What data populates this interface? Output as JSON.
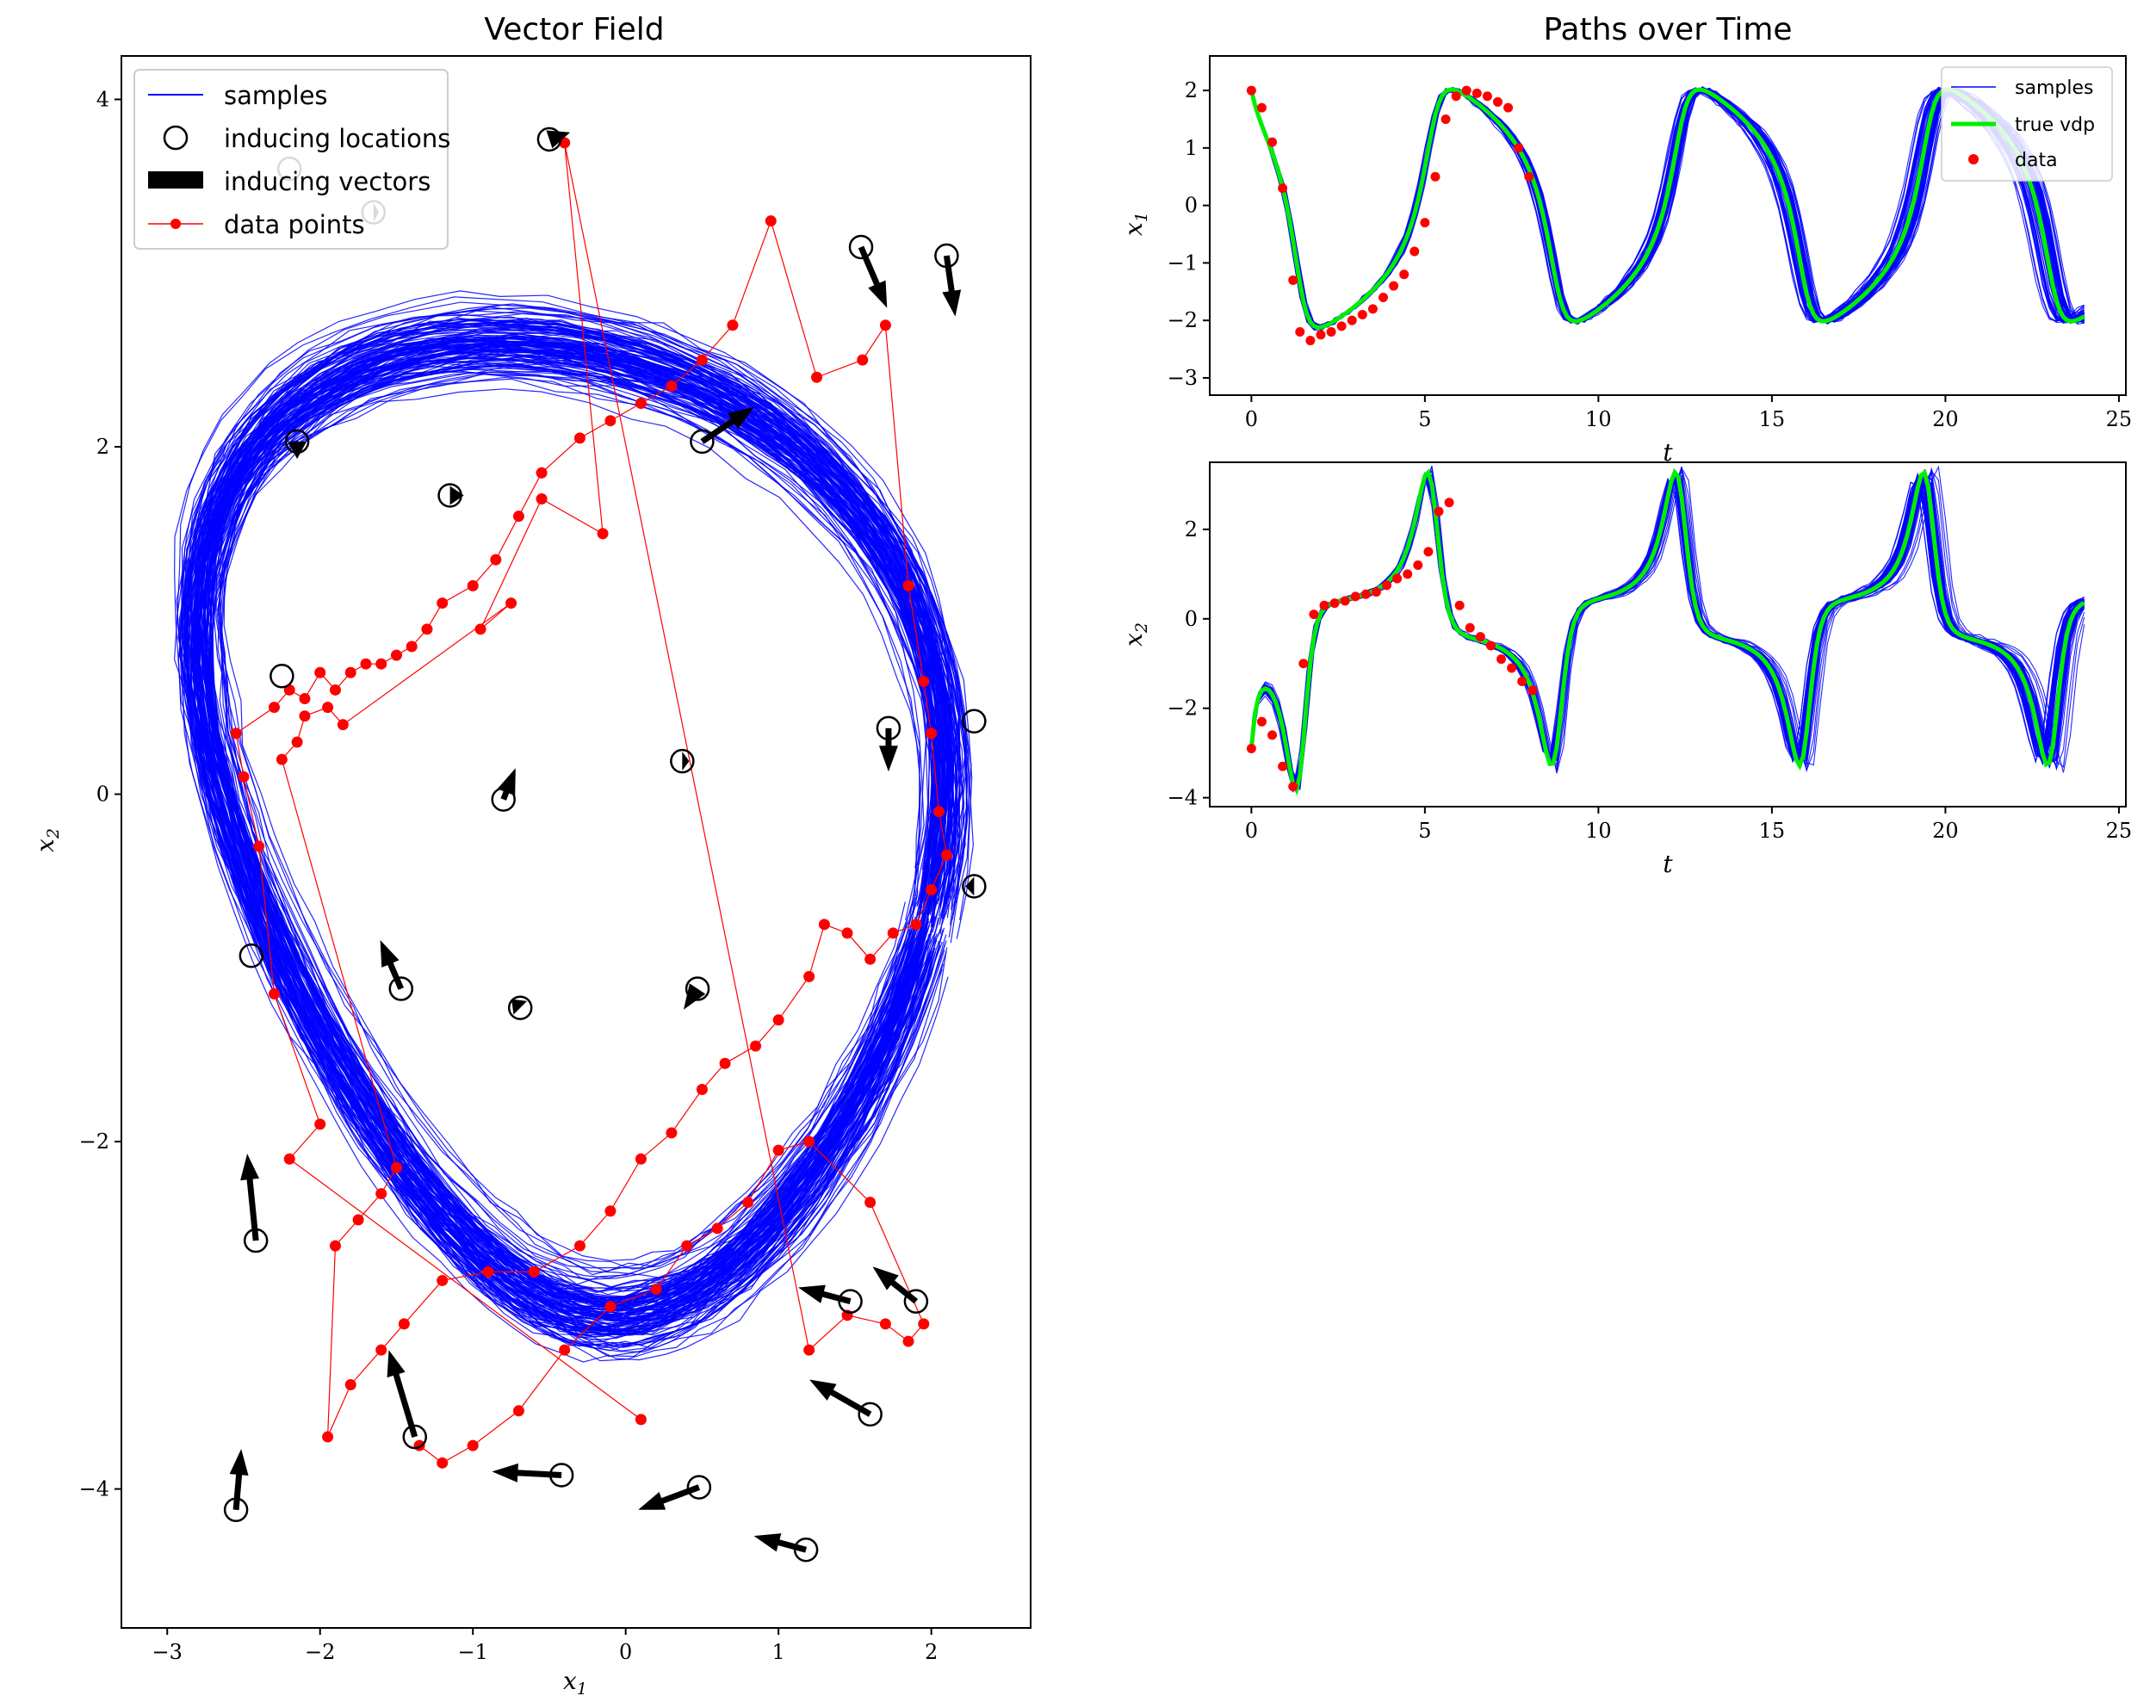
{
  "chart_data": [
    {
      "type": "line",
      "title": "Vector Field",
      "xlabel": "x",
      "xlabel_sub": "1",
      "ylabel": "x",
      "ylabel_sub": "2",
      "xlim": [
        -3.3,
        2.65
      ],
      "ylim": [
        -4.8,
        4.25
      ],
      "xticks": [
        -3,
        -2,
        -1,
        0,
        1,
        2
      ],
      "yticks": [
        -4,
        -2,
        0,
        2,
        4
      ],
      "legend": {
        "placement": "top-left",
        "entries": [
          "samples",
          "inducing locations",
          "inducing vectors",
          "data points"
        ]
      },
      "colors": {
        "samples": "#0000ff",
        "data": "#ff0000",
        "vectors": "#000000"
      },
      "data_points": [
        [
          0.1,
          -3.6
        ],
        [
          -2.2,
          -2.1
        ],
        [
          -2.0,
          -1.9
        ],
        [
          -2.3,
          -1.15
        ],
        [
          -2.4,
          -0.3
        ],
        [
          -2.5,
          0.1
        ],
        [
          -2.55,
          0.35
        ],
        [
          -2.3,
          0.5
        ],
        [
          -2.2,
          0.6
        ],
        [
          -2.1,
          0.55
        ],
        [
          -2.0,
          0.7
        ],
        [
          -1.9,
          0.6
        ],
        [
          -1.8,
          0.7
        ],
        [
          -1.7,
          0.75
        ],
        [
          -1.6,
          0.75
        ],
        [
          -1.5,
          0.8
        ],
        [
          -1.4,
          0.85
        ],
        [
          -1.3,
          0.95
        ],
        [
          -1.2,
          1.1
        ],
        [
          -1.0,
          1.2
        ],
        [
          -0.85,
          1.35
        ],
        [
          -0.7,
          1.6
        ],
        [
          -0.55,
          1.85
        ],
        [
          -0.3,
          2.05
        ],
        [
          -0.1,
          2.15
        ],
        [
          0.1,
          2.25
        ],
        [
          0.3,
          2.35
        ],
        [
          0.5,
          2.5
        ],
        [
          0.7,
          2.7
        ],
        [
          0.95,
          3.3
        ],
        [
          1.25,
          2.4
        ],
        [
          1.55,
          2.5
        ],
        [
          1.7,
          2.7
        ],
        [
          1.85,
          1.2
        ],
        [
          1.95,
          0.65
        ],
        [
          2.0,
          0.35
        ],
        [
          2.05,
          -0.1
        ],
        [
          2.1,
          -0.35
        ],
        [
          2.0,
          -0.55
        ],
        [
          1.9,
          -0.75
        ],
        [
          1.75,
          -0.8
        ],
        [
          1.6,
          -0.95
        ],
        [
          1.45,
          -0.8
        ],
        [
          1.3,
          -0.75
        ],
        [
          1.2,
          -1.05
        ],
        [
          1.0,
          -1.3
        ],
        [
          0.85,
          -1.45
        ],
        [
          0.65,
          -1.55
        ],
        [
          0.5,
          -1.7
        ],
        [
          0.3,
          -1.95
        ],
        [
          0.1,
          -2.1
        ],
        [
          -0.1,
          -2.4
        ],
        [
          -0.3,
          -2.6
        ],
        [
          -0.6,
          -2.75
        ],
        [
          -0.9,
          -2.75
        ],
        [
          -1.2,
          -2.8
        ],
        [
          -1.45,
          -3.05
        ],
        [
          -1.6,
          -3.2
        ],
        [
          -1.8,
          -3.4
        ],
        [
          -1.95,
          -3.7
        ],
        [
          -1.9,
          -2.6
        ],
        [
          -1.75,
          -2.45
        ],
        [
          -1.6,
          -2.3
        ],
        [
          -1.5,
          -2.15
        ],
        [
          -2.25,
          0.2
        ],
        [
          -2.15,
          0.3
        ],
        [
          -2.1,
          0.45
        ],
        [
          -1.95,
          0.5
        ],
        [
          -1.85,
          0.4
        ],
        [
          -0.75,
          1.1
        ],
        [
          -0.95,
          0.95
        ],
        [
          -0.55,
          1.7
        ],
        [
          -0.15,
          1.5
        ],
        [
          -0.4,
          3.75
        ],
        [
          1.2,
          -3.2
        ],
        [
          1.45,
          -3.0
        ],
        [
          1.7,
          -3.05
        ],
        [
          1.85,
          -3.15
        ],
        [
          1.95,
          -3.05
        ],
        [
          1.6,
          -2.35
        ],
        [
          1.2,
          -2.0
        ],
        [
          1.0,
          -2.05
        ],
        [
          0.8,
          -2.35
        ],
        [
          0.6,
          -2.5
        ],
        [
          0.4,
          -2.6
        ],
        [
          0.2,
          -2.85
        ],
        [
          -0.1,
          -2.95
        ],
        [
          -0.4,
          -3.2
        ],
        [
          -0.7,
          -3.55
        ],
        [
          -1.0,
          -3.75
        ],
        [
          -1.2,
          -3.85
        ],
        [
          -1.35,
          -3.75
        ]
      ],
      "inducing": [
        {
          "p": [
            -0.5,
            3.77
          ],
          "v": [
            0.12,
            0.04
          ]
        },
        {
          "p": [
            -2.2,
            3.6
          ],
          "v": [
            0.0,
            0.0
          ]
        },
        {
          "p": [
            -1.65,
            3.35
          ],
          "v": [
            0.03,
            0.0
          ]
        },
        {
          "p": [
            1.54,
            3.15
          ],
          "v": [
            0.15,
            -0.35
          ]
        },
        {
          "p": [
            2.1,
            3.1
          ],
          "v": [
            0.05,
            -0.35
          ]
        },
        {
          "p": [
            -2.15,
            2.03
          ],
          "v": [
            0.0,
            -0.1
          ]
        },
        {
          "p": [
            -1.15,
            1.72
          ],
          "v": [
            0.08,
            0.0
          ]
        },
        {
          "p": [
            0.5,
            2.03
          ],
          "v": [
            0.3,
            0.2
          ]
        },
        {
          "p": [
            -2.25,
            0.68
          ],
          "v": [
            0.0,
            0.0
          ]
        },
        {
          "p": [
            0.37,
            0.19
          ],
          "v": [
            0.04,
            0.0
          ]
        },
        {
          "p": [
            -0.8,
            -0.03
          ],
          "v": [
            0.07,
            0.18
          ]
        },
        {
          "p": [
            1.72,
            0.38
          ],
          "v": [
            0.0,
            -0.25
          ]
        },
        {
          "p": [
            2.28,
            0.42
          ],
          "v": [
            0.0,
            0.0
          ]
        },
        {
          "p": [
            2.28,
            -0.53
          ],
          "v": [
            -0.05,
            0.0
          ]
        },
        {
          "p": [
            -2.45,
            -0.93
          ],
          "v": [
            0.0,
            0.0
          ]
        },
        {
          "p": [
            -1.47,
            -1.12
          ],
          "v": [
            -0.12,
            0.28
          ]
        },
        {
          "p": [
            -0.69,
            -1.23
          ],
          "v": [
            -0.05,
            0.05
          ]
        },
        {
          "p": [
            0.47,
            -1.12
          ],
          "v": [
            -0.08,
            -0.12
          ]
        },
        {
          "p": [
            -2.42,
            -2.57
          ],
          "v": [
            -0.05,
            0.5
          ]
        },
        {
          "p": [
            1.47,
            -2.92
          ],
          "v": [
            -0.3,
            0.08
          ]
        },
        {
          "p": [
            1.9,
            -2.92
          ],
          "v": [
            -0.25,
            0.2
          ]
        },
        {
          "p": [
            1.6,
            -3.57
          ],
          "v": [
            -0.35,
            0.2
          ]
        },
        {
          "p": [
            -1.38,
            -3.7
          ],
          "v": [
            -0.15,
            0.5
          ]
        },
        {
          "p": [
            -0.42,
            -3.92
          ],
          "v": [
            -0.4,
            0.02
          ]
        },
        {
          "p": [
            0.48,
            -3.99
          ],
          "v": [
            -0.35,
            -0.13
          ]
        },
        {
          "p": [
            1.18,
            -4.35
          ],
          "v": [
            -0.3,
            0.08
          ]
        },
        {
          "p": [
            -2.55,
            -4.12
          ],
          "v": [
            0.03,
            0.35
          ]
        }
      ]
    },
    {
      "type": "line",
      "title": "Paths over Time",
      "xlabel": "t",
      "ylabel": "x",
      "ylabel_sub": "1",
      "xlim": [
        -1.2,
        25.2
      ],
      "ylim": [
        -3.3,
        2.6
      ],
      "xticks": [
        0,
        5,
        10,
        15,
        20,
        25
      ],
      "yticks": [
        2,
        1,
        0,
        -1,
        -2,
        -3
      ],
      "legend": {
        "placement": "top-right",
        "entries": [
          "samples",
          "true vdp",
          "data"
        ]
      },
      "colors": {
        "samples": "#0000ff",
        "true": "#00ee00",
        "data": "#ff0000"
      },
      "data_points": [
        [
          0.0,
          2.0
        ],
        [
          0.3,
          1.7
        ],
        [
          0.6,
          1.1
        ],
        [
          0.9,
          0.3
        ],
        [
          1.2,
          -1.3
        ],
        [
          1.4,
          -2.2
        ],
        [
          1.7,
          -2.35
        ],
        [
          2.0,
          -2.25
        ],
        [
          2.3,
          -2.2
        ],
        [
          2.6,
          -2.1
        ],
        [
          2.9,
          -2.0
        ],
        [
          3.2,
          -1.9
        ],
        [
          3.5,
          -1.8
        ],
        [
          3.8,
          -1.6
        ],
        [
          4.1,
          -1.4
        ],
        [
          4.4,
          -1.2
        ],
        [
          4.7,
          -0.8
        ],
        [
          5.0,
          -0.3
        ],
        [
          5.3,
          0.5
        ],
        [
          5.6,
          1.5
        ],
        [
          5.9,
          1.9
        ],
        [
          6.2,
          2.0
        ],
        [
          6.5,
          1.95
        ],
        [
          6.8,
          1.9
        ],
        [
          7.1,
          1.8
        ],
        [
          7.4,
          1.7
        ],
        [
          7.7,
          1.0
        ],
        [
          8.0,
          0.5
        ]
      ]
    },
    {
      "type": "line",
      "title": "",
      "xlabel": "t",
      "ylabel": "x",
      "ylabel_sub": "2",
      "xlim": [
        -1.2,
        25.2
      ],
      "ylim": [
        -4.2,
        3.5
      ],
      "xticks": [
        0,
        5,
        10,
        15,
        20,
        25
      ],
      "yticks": [
        2,
        0,
        -2,
        -4
      ],
      "data_points": [
        [
          0.0,
          -2.9
        ],
        [
          0.3,
          -2.3
        ],
        [
          0.6,
          -2.6
        ],
        [
          0.9,
          -3.3
        ],
        [
          1.2,
          -3.75
        ],
        [
          1.5,
          -1.0
        ],
        [
          1.8,
          0.1
        ],
        [
          2.1,
          0.3
        ],
        [
          2.4,
          0.35
        ],
        [
          2.7,
          0.4
        ],
        [
          3.0,
          0.5
        ],
        [
          3.3,
          0.55
        ],
        [
          3.6,
          0.6
        ],
        [
          3.9,
          0.75
        ],
        [
          4.2,
          0.9
        ],
        [
          4.5,
          1.0
        ],
        [
          4.8,
          1.2
        ],
        [
          5.1,
          1.5
        ],
        [
          5.4,
          2.4
        ],
        [
          5.7,
          2.6
        ],
        [
          6.0,
          0.3
        ],
        [
          6.3,
          -0.2
        ],
        [
          6.6,
          -0.4
        ],
        [
          6.9,
          -0.6
        ],
        [
          7.2,
          -0.9
        ],
        [
          7.5,
          -1.1
        ],
        [
          7.8,
          -1.4
        ],
        [
          8.1,
          -1.6
        ]
      ]
    }
  ]
}
